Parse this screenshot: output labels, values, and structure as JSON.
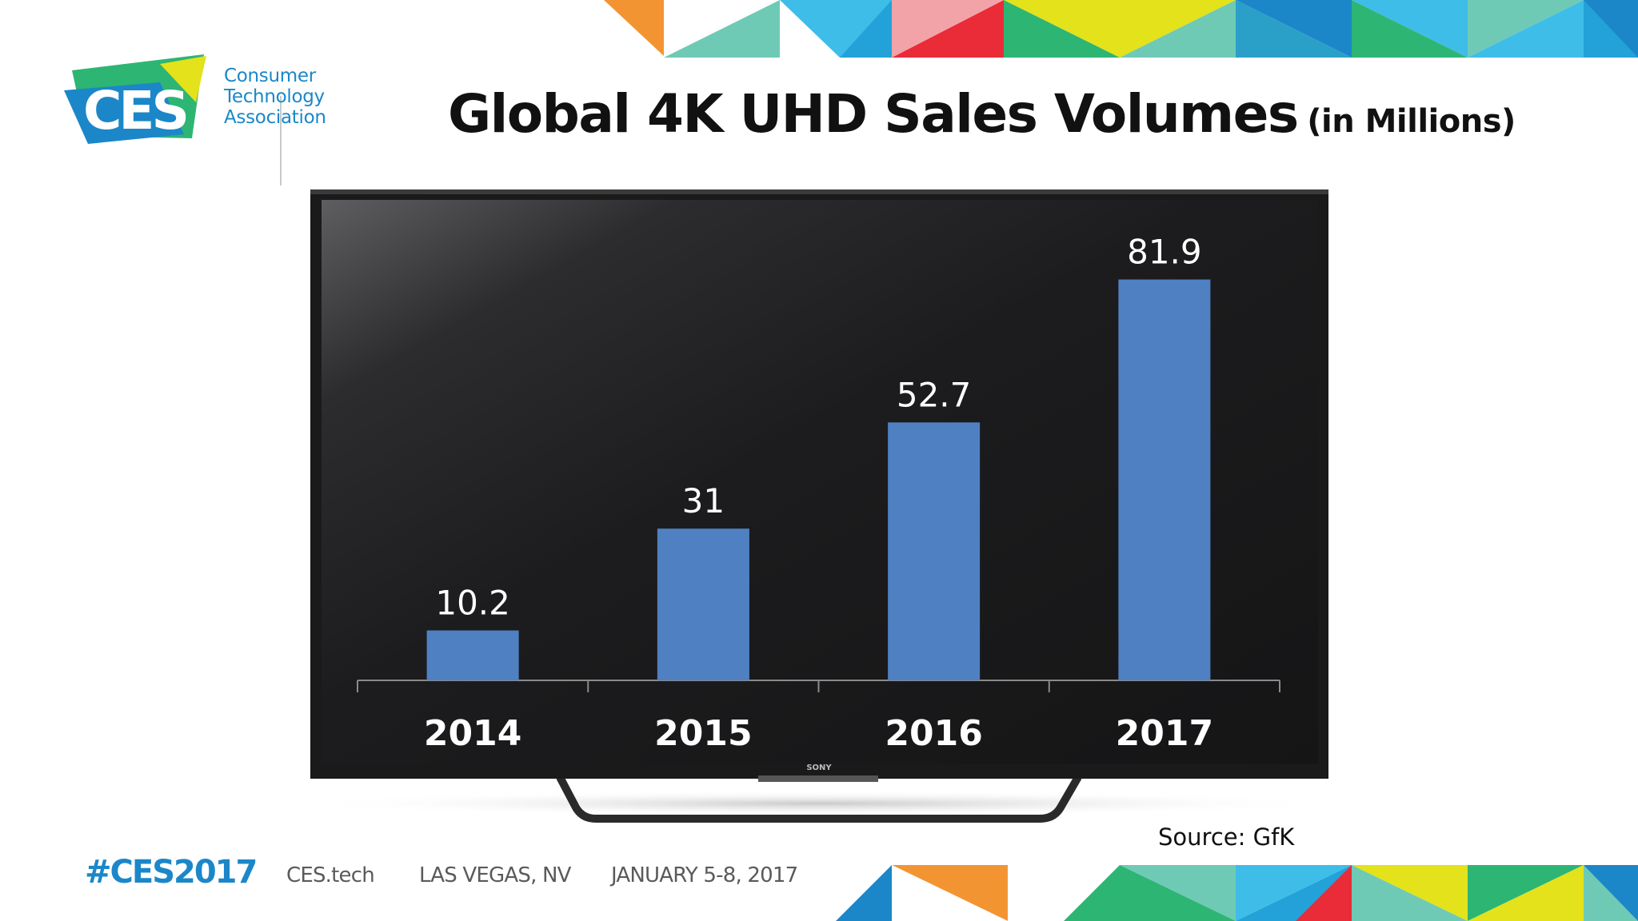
{
  "logo": {
    "mark_text": "CES",
    "org_lines": [
      "Consumer",
      "Technology",
      "Association"
    ]
  },
  "title": {
    "main": "Global 4K UHD Sales Volumes",
    "sub": "(in Millions)"
  },
  "chart_data": {
    "type": "bar",
    "title": "Global 4K UHD Sales Volumes (in Millions)",
    "categories": [
      "2014",
      "2015",
      "2016",
      "2017"
    ],
    "values": [
      10.2,
      31,
      52.7,
      81.9
    ],
    "data_labels": [
      "10.2",
      "31",
      "52.7",
      "81.9"
    ],
    "xlabel": "",
    "ylabel": "",
    "ylim": [
      0,
      90
    ],
    "grid": false,
    "legend": "none",
    "bar_color": "#4f81c2",
    "label_color": "#ffffff",
    "background": "tv-screen-dark"
  },
  "tv": {
    "brand": "SONY"
  },
  "source": "Source: GfK",
  "footer": {
    "hashtag": "#CES2017",
    "site": "CES.tech",
    "location": "LAS VEGAS, NV",
    "dates": "JANUARY 5-8, 2017"
  },
  "colors": {
    "ces_blue": "#1b87c9",
    "ces_green": "#2db574",
    "ces_yellow": "#e3e21b",
    "ces_red": "#ea2b38",
    "ces_orange": "#f39432",
    "ces_light_blue": "#3fbde9",
    "ces_teal": "#6fcab5"
  }
}
